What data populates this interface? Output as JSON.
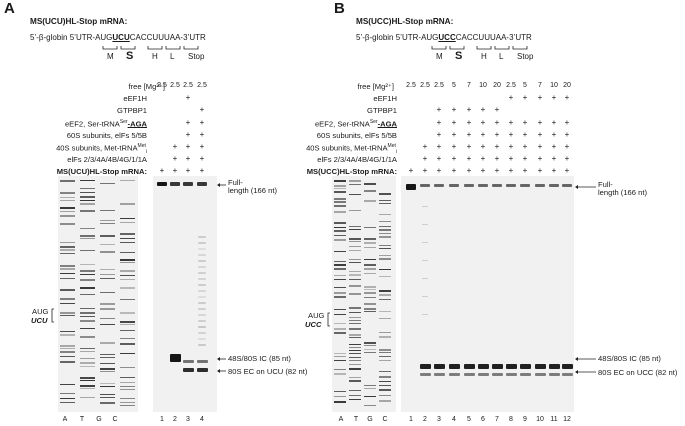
{
  "panelA": {
    "letter": "A",
    "title": "MS(UCU)HL-Stop mRNA:",
    "seq_prefix": "5’-β-globin 5’UTR-AUG",
    "seq_codon": "UCU",
    "seq_suffix": "CACCUUUAA-3’UTR",
    "codons": [
      "M",
      "S",
      "H",
      "L",
      "Stop"
    ],
    "mg_label": "free [Mg²⁺]",
    "mg_values": [
      "2.5",
      "2.5",
      "2.5",
      "2.5"
    ],
    "rows": [
      {
        "label": "eEF1H",
        "marks": [
          "",
          "",
          "+",
          ""
        ]
      },
      {
        "label": "GTPBP1",
        "marks": [
          "",
          "",
          "",
          "+"
        ]
      },
      {
        "label_pre": "eEF2, Ser-tRNA",
        "label_sup": "Ser",
        "label_post": "-AGA",
        "marks": [
          "",
          "",
          "+",
          "+"
        ]
      },
      {
        "label": "60S subunits, elFs 5/5B",
        "marks": [
          "",
          "",
          "+",
          "+"
        ]
      },
      {
        "label_pre": "40S subunits, Met-tRNA",
        "label_sup": "Met",
        "label_sub": "i",
        "marks": [
          "",
          "+",
          "+",
          "+"
        ]
      },
      {
        "label": "elFs 2/3/4A/4B/4G/1/1A",
        "marks": [
          "",
          "+",
          "+",
          "+"
        ]
      },
      {
        "label": "MS(UCU)HL-Stop mRNA:",
        "bold": true,
        "marks": [
          "+",
          "+",
          "+",
          "+"
        ]
      }
    ],
    "seq_lanes": [
      "A",
      "T",
      "G",
      "C"
    ],
    "lanes": [
      "1",
      "2",
      "3",
      "4"
    ],
    "side_aug": "AUG",
    "side_codon": "UCU",
    "ann_full_1": "Full-",
    "ann_full_2": "length (166 nt)",
    "ann_ic": "48S/80S IC (85 nt)",
    "ann_ec": "80S EC on UCU (82 nt)"
  },
  "panelB": {
    "letter": "B",
    "title": "MS(UCC)HL-Stop mRNA:",
    "seq_prefix": "5’-β-globin 5’UTR-AUG",
    "seq_codon": "UCC",
    "seq_suffix": "CACCUUUAA-3’UTR",
    "codons": [
      "M",
      "S",
      "H",
      "L",
      "Stop"
    ],
    "mg_label": "free [Mg²⁺]",
    "mg_values": [
      "2.5",
      "2.5",
      "2.5",
      "5",
      "7",
      "10",
      "20",
      "2.5",
      "5",
      "7",
      "10",
      "20"
    ],
    "rows": [
      {
        "label": "eEF1H",
        "marks": [
          "",
          "",
          "",
          "",
          "",
          "",
          "",
          "+",
          "+",
          "+",
          "+",
          "+"
        ]
      },
      {
        "label": "GTPBP1",
        "marks": [
          "",
          "",
          "+",
          "+",
          "+",
          "+",
          "+",
          "",
          "",
          "",
          "",
          ""
        ]
      },
      {
        "label_pre": "eEF2, Ser-tRNA",
        "label_sup": "Ser",
        "label_post": "-AGA",
        "marks": [
          "",
          "",
          "+",
          "+",
          "+",
          "+",
          "+",
          "+",
          "+",
          "+",
          "+",
          "+"
        ]
      },
      {
        "label": "60S subunits, elFs 5/5B",
        "marks": [
          "",
          "",
          "+",
          "+",
          "+",
          "+",
          "+",
          "+",
          "+",
          "+",
          "+",
          "+"
        ]
      },
      {
        "label_pre": "40S subunits, Met-tRNA",
        "label_sup": "Met",
        "label_sub": "i",
        "marks": [
          "",
          "+",
          "+",
          "+",
          "+",
          "+",
          "+",
          "+",
          "+",
          "+",
          "+",
          "+"
        ]
      },
      {
        "label": "elFs 2/3/4A/4B/4G/1/1A",
        "marks": [
          "",
          "+",
          "+",
          "+",
          "+",
          "+",
          "+",
          "+",
          "+",
          "+",
          "+",
          "+"
        ]
      },
      {
        "label": "MS(UCC)HL-Stop mRNA:",
        "bold": true,
        "marks": [
          "+",
          "+",
          "+",
          "+",
          "+",
          "+",
          "+",
          "+",
          "+",
          "+",
          "+",
          "+"
        ]
      }
    ],
    "seq_lanes": [
      "A",
      "T",
      "G",
      "C"
    ],
    "lanes": [
      "1",
      "2",
      "3",
      "4",
      "5",
      "6",
      "7",
      "8",
      "9",
      "10",
      "11",
      "12"
    ],
    "side_aug": "AUG",
    "side_codon": "UCC",
    "ann_full_1": "Full-",
    "ann_full_2": "length (166 nt)",
    "ann_ic": "48S/80S IC (85 nt)",
    "ann_ec": "80S EC on UCC (82 nt)"
  }
}
